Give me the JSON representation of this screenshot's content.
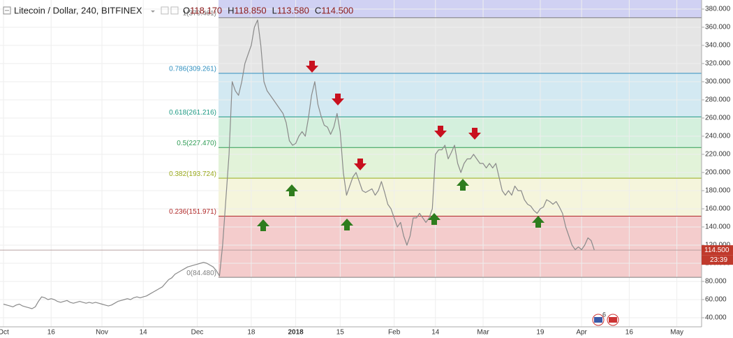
{
  "chart_data": {
    "type": "line",
    "title": "Litecoin / Dollar, 240, BITFINEX",
    "ohlc": [
      {
        "key": "O",
        "value": "118.170"
      },
      {
        "key": "H",
        "value": "118.850"
      },
      {
        "key": "L",
        "value": "113.580"
      },
      {
        "key": "C",
        "value": "114.500"
      }
    ],
    "categories": [
      "Oct",
      null,
      null,
      null,
      null,
      null,
      null,
      null,
      null,
      null,
      null,
      null,
      null,
      null,
      null,
      "16",
      null,
      null,
      null,
      null,
      null,
      null,
      null,
      null,
      null,
      null,
      null,
      null,
      null,
      null,
      null,
      "Nov",
      null,
      null,
      null,
      null,
      null,
      null,
      null,
      null,
      null,
      null,
      null,
      null,
      "14",
      null,
      null,
      null,
      null,
      null,
      null,
      null,
      null,
      null,
      null,
      null,
      null,
      null,
      null,
      null,
      null,
      "Dec",
      null,
      null,
      null,
      null,
      null,
      null,
      null,
      null,
      null,
      null,
      null,
      null,
      null,
      null,
      null,
      null,
      "18",
      null,
      null,
      null,
      null,
      null,
      null,
      null,
      null,
      null,
      null,
      null,
      null,
      null,
      "2018",
      null,
      null,
      null,
      null,
      null,
      null,
      null,
      null,
      null,
      null,
      null,
      null,
      null,
      "15",
      null,
      null,
      null,
      null,
      null,
      null,
      null,
      null,
      null,
      null,
      null,
      null,
      null,
      null,
      null,
      null,
      "Feb",
      null,
      null,
      null,
      null,
      null,
      null,
      null,
      null,
      null,
      null,
      null,
      null,
      "14",
      null,
      null,
      null,
      null,
      null,
      null,
      null,
      null,
      null,
      null,
      null,
      null,
      null,
      null,
      "Mar",
      null,
      null,
      null,
      null,
      null,
      null,
      null,
      null,
      null,
      null,
      null,
      null,
      null,
      null,
      null,
      null,
      null,
      "19",
      null,
      null,
      null,
      null,
      null,
      null,
      null,
      null,
      null,
      null,
      null,
      null,
      "Apr",
      null,
      null,
      null,
      null,
      null,
      null,
      null,
      null,
      null,
      null,
      null,
      null,
      null,
      null,
      "16",
      null,
      null,
      null,
      null,
      null,
      null,
      null,
      null,
      null,
      null,
      null,
      null,
      null,
      null,
      "May"
    ],
    "series": [
      {
        "color": "#8a8a8a",
        "values": [
          55,
          54,
          53,
          52,
          54,
          55,
          53,
          52,
          51,
          50,
          52,
          58,
          63,
          62,
          60,
          61,
          60,
          58,
          57,
          58,
          59,
          57,
          56,
          57,
          58,
          57,
          56,
          57,
          56,
          57,
          56,
          55,
          54,
          53,
          54,
          56,
          58,
          59,
          60,
          61,
          60,
          62,
          63,
          62,
          63,
          64,
          66,
          68,
          70,
          72,
          74,
          78,
          82,
          84,
          88,
          90,
          92,
          94,
          96,
          97,
          98,
          99,
          100,
          101,
          100,
          98,
          96,
          92,
          86,
          120,
          170,
          220,
          300,
          290,
          285,
          300,
          320,
          330,
          340,
          360,
          368,
          340,
          300,
          290,
          285,
          280,
          275,
          270,
          265,
          255,
          235,
          230,
          232,
          240,
          245,
          240,
          260,
          285,
          300,
          275,
          262,
          252,
          250,
          242,
          250,
          265,
          245,
          200,
          175,
          185,
          195,
          200,
          190,
          180,
          178,
          180,
          182,
          175,
          180,
          190,
          178,
          165,
          160,
          150,
          140,
          145,
          130,
          120,
          130,
          150,
          150,
          155,
          150,
          145,
          150,
          160,
          220,
          225,
          225,
          230,
          215,
          222,
          230,
          210,
          200,
          210,
          215,
          215,
          220,
          215,
          210,
          210,
          205,
          210,
          205,
          210,
          195,
          180,
          175,
          180,
          175,
          185,
          180,
          180,
          170,
          165,
          163,
          158,
          155,
          160,
          162,
          170,
          168,
          165,
          168,
          162,
          155,
          140,
          130,
          120,
          115,
          118,
          115,
          120,
          128,
          125,
          114.5,
          null,
          null,
          null,
          null,
          null,
          null,
          null,
          null,
          null,
          null,
          null,
          null,
          null,
          null,
          null,
          null,
          null,
          null,
          null,
          null,
          null,
          null,
          null,
          null,
          null,
          null
        ]
      }
    ],
    "ylim": [
      30,
      390
    ],
    "yticks": [
      {
        "value": 40,
        "label": "40.000"
      },
      {
        "value": 60,
        "label": "60.000"
      },
      {
        "value": 80,
        "label": "80.000"
      },
      {
        "value": 100,
        "label": "100.000"
      },
      {
        "value": 120,
        "label": "120.000"
      },
      {
        "value": 140,
        "label": "140.000"
      },
      {
        "value": 160,
        "label": "160.000"
      },
      {
        "value": 180,
        "label": "180.000"
      },
      {
        "value": 200,
        "label": "200.000"
      },
      {
        "value": 220,
        "label": "220.000"
      },
      {
        "value": 240,
        "label": "240.000"
      },
      {
        "value": 260,
        "label": "260.000"
      },
      {
        "value": 280,
        "label": "280.000"
      },
      {
        "value": 300,
        "label": "300.000"
      },
      {
        "value": 320,
        "label": "320.000"
      },
      {
        "value": 340,
        "label": "340.000"
      },
      {
        "value": 360,
        "label": "360.000"
      },
      {
        "value": 380,
        "label": "380.000"
      }
    ],
    "grid": true,
    "fib_levels": [
      {
        "label": "0(84.480)",
        "value": 84.48,
        "color": "#7f7f7f",
        "fill": "#f4cccc"
      },
      {
        "label": "0.236(151.971)",
        "value": 151.971,
        "color": "#b02a2a",
        "fill": "#f5f5dc"
      },
      {
        "label": "0.382(193.724)",
        "value": 193.724,
        "color": "#9aaa1e",
        "fill": "#e2f3d9"
      },
      {
        "label": "0.5(227.470)",
        "value": 227.47,
        "color": "#2f9c55",
        "fill": "#d4f0dd"
      },
      {
        "label": "0.618(261.216)",
        "value": 261.216,
        "color": "#1f9a84",
        "fill": "#d3e9f2"
      },
      {
        "label": "0.786(309.261)",
        "value": 309.261,
        "color": "#2f8fbf",
        "fill": "#e5e5e5"
      },
      {
        "label": "1(370.461)",
        "value": 370.461,
        "color": "#7f7f7f",
        "fill": "#d0d1f3"
      }
    ],
    "last_price": 114.5,
    "last_price_label": "114.500",
    "countdown": "23:39",
    "events_count": "6"
  }
}
